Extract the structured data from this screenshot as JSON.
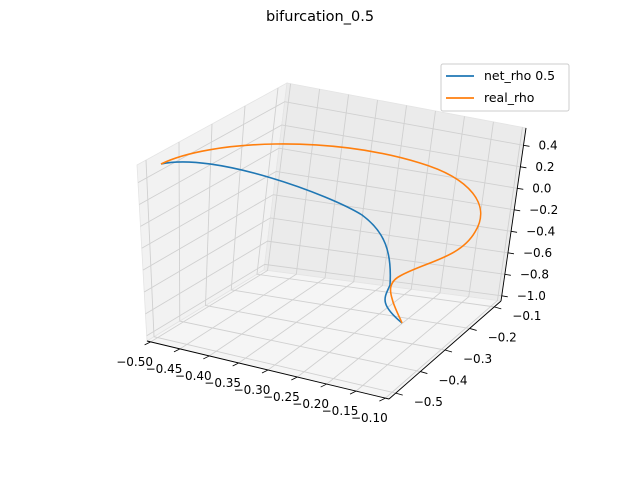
{
  "chart_data": {
    "type": "line",
    "projection": "3d",
    "title": "bifurcation_0.5",
    "legend_placement": "top-right",
    "grid": true,
    "axes": {
      "x": {
        "ticks": [
          "−0.50",
          "−0.45",
          "−0.40",
          "−0.35",
          "−0.30",
          "−0.25",
          "−0.20",
          "−0.15",
          "−0.10"
        ]
      },
      "y": {
        "ticks": [
          "−0.5",
          "−0.4",
          "−0.3",
          "−0.2",
          "−0.1"
        ]
      },
      "z": {
        "ticks": [
          "0.4",
          "0.2",
          "0.0",
          "−0.2",
          "−0.4",
          "−0.6",
          "−0.8",
          "−1.0"
        ]
      }
    },
    "series": [
      {
        "name": "net_rho 0.5",
        "color": "#1f77b4"
      },
      {
        "name": "real_rho",
        "color": "#ff7f0e"
      }
    ]
  }
}
